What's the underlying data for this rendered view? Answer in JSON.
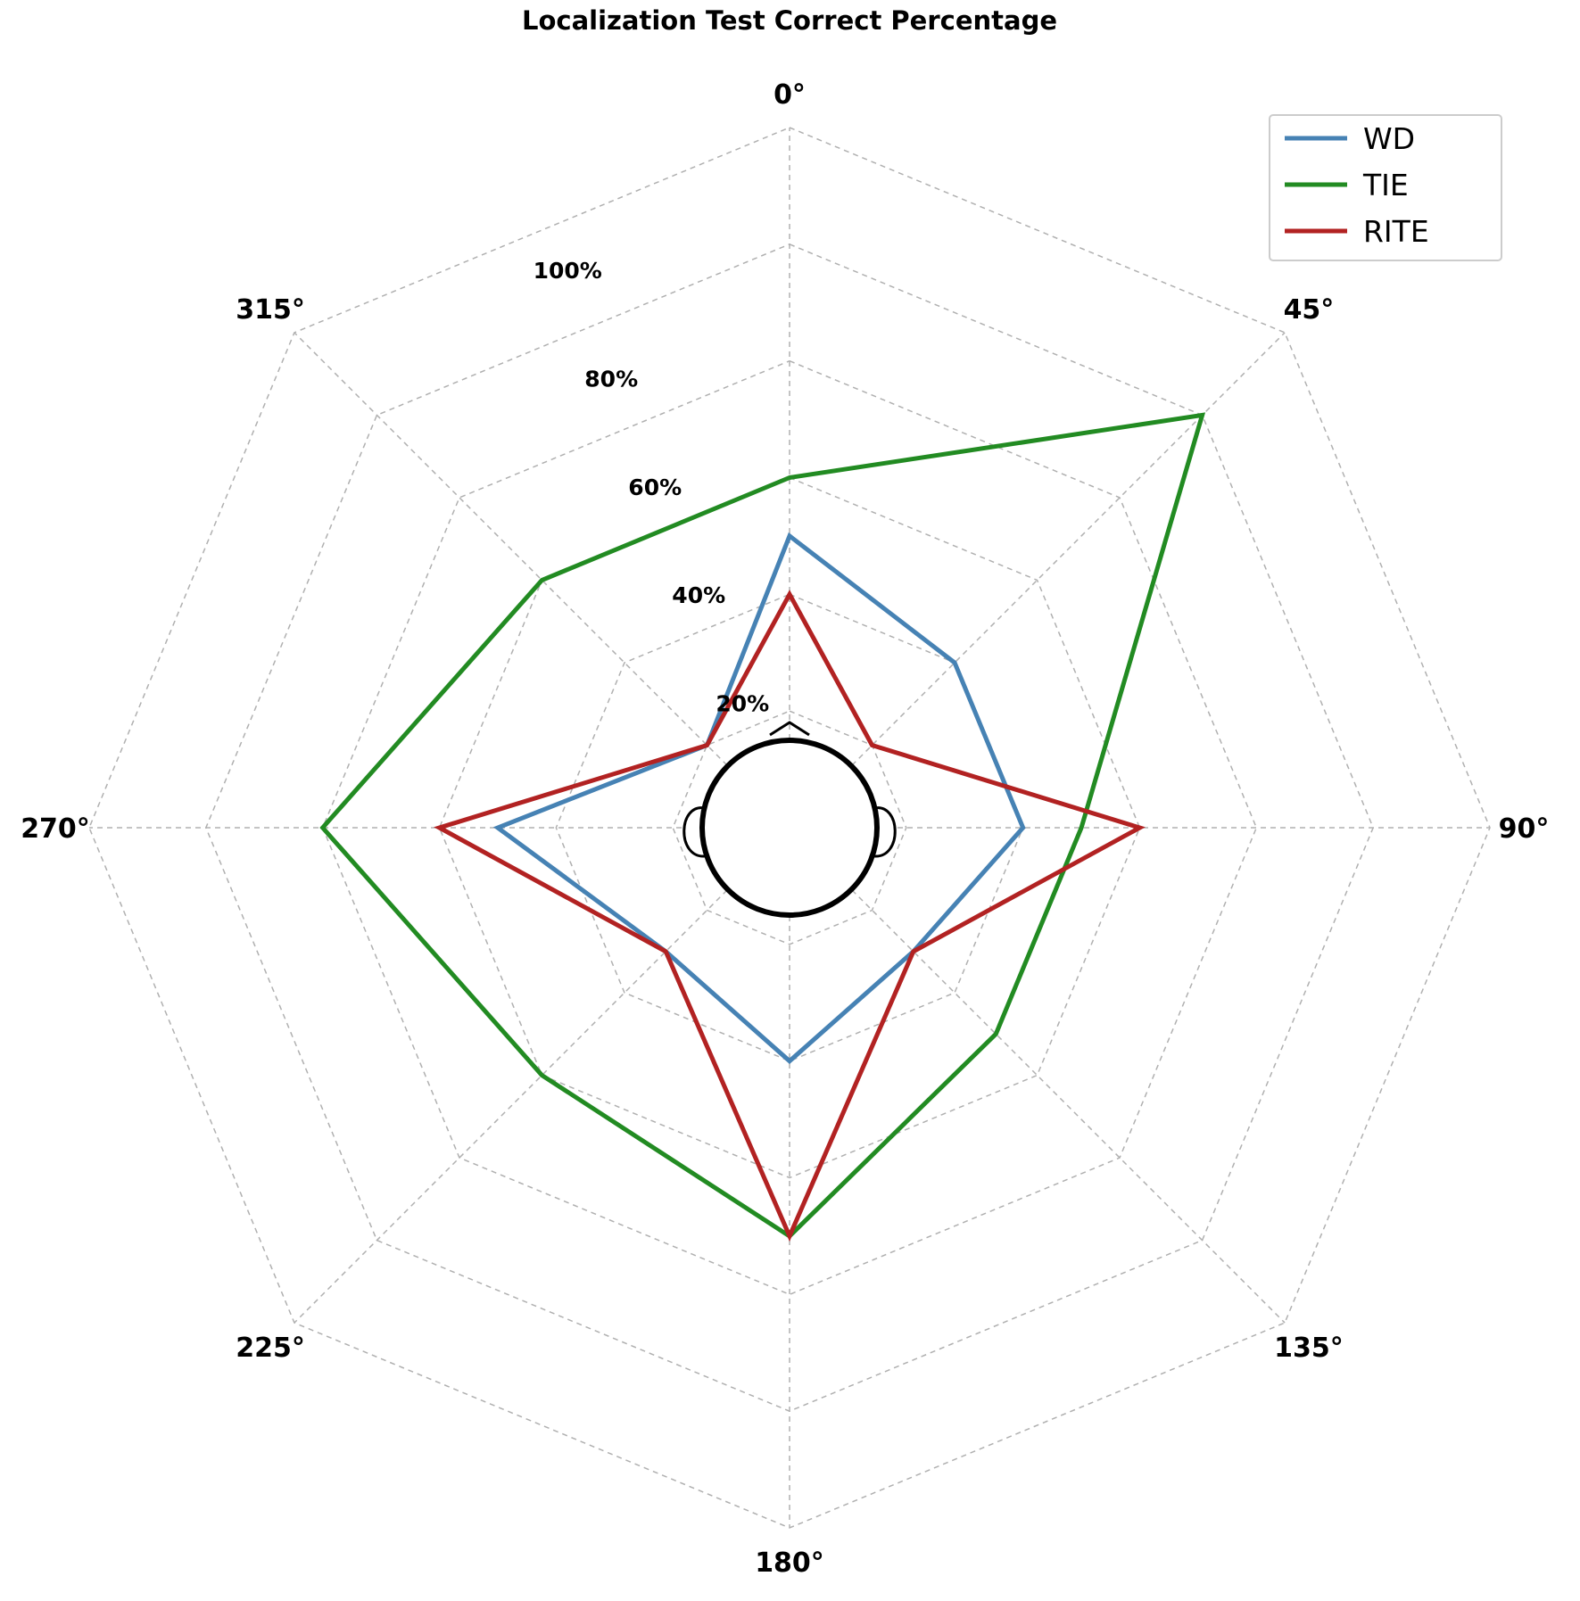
{
  "chart_data": {
    "type": "radar",
    "title": "Localization Test Correct Percentage",
    "angle_labels": [
      "0°",
      "45°",
      "90°",
      "135°",
      "180°",
      "225°",
      "270°",
      "315°"
    ],
    "angles_deg": [
      0,
      45,
      90,
      135,
      180,
      225,
      270,
      315
    ],
    "radial_tick_labels": [
      "20%",
      "40%",
      "60%",
      "80%",
      "100%"
    ],
    "radial_ticks": [
      20,
      40,
      60,
      80,
      100
    ],
    "rlim": [
      0,
      100
    ],
    "grid": true,
    "legend_position": "top-right",
    "series": [
      {
        "name": "WD",
        "color": "#4682b4",
        "values": [
          50,
          40,
          40,
          30,
          40,
          30,
          50,
          20
        ]
      },
      {
        "name": "TIE",
        "color": "#228b22",
        "values": [
          60,
          100,
          50,
          50,
          70,
          60,
          80,
          60
        ]
      },
      {
        "name": "RITE",
        "color": "#b22222",
        "values": [
          40,
          20,
          60,
          30,
          70,
          30,
          60,
          20
        ]
      }
    ],
    "center_icon": "head-top-view-icon"
  }
}
